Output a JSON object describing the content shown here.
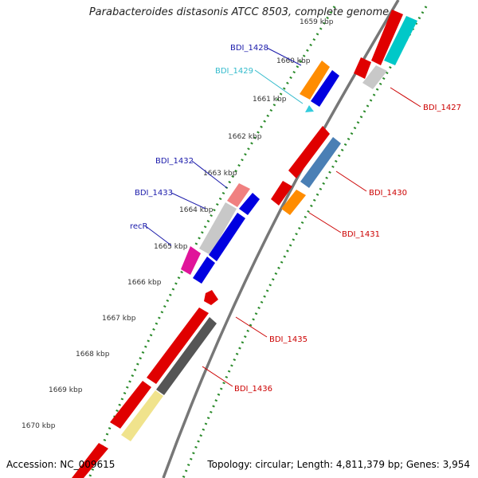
{
  "header": {
    "title": "Parabacteroides distasonis ATCC 8503, complete genome"
  },
  "footer": {
    "accession": "Accession: NC_009615",
    "summary": "Topology: circular; Length: 4,811,379 bp; Genes: 3,954"
  },
  "ticks": {
    "kbp_1659": "1659 kbp",
    "kbp_1660": "1660 kbp",
    "kbp_1661": "1661 kbp",
    "kbp_1662": "1662 kbp",
    "kbp_1663": "1663 kbp",
    "kbp_1664": "1664 kbp",
    "kbp_1665": "1665 kbp",
    "kbp_1666": "1666 kbp",
    "kbp_1667": "1667 kbp",
    "kbp_1668": "1668 kbp",
    "kbp_1669": "1669 kbp",
    "kbp_1670": "1670 kbp"
  },
  "genes": {
    "bdi_1427": "BDI_1427",
    "bdi_1428": "BDI_1428",
    "bdi_1429": "BDI_1429",
    "bdi_1430": "BDI_1430",
    "bdi_1431": "BDI_1431",
    "bdi_1432": "BDI_1432",
    "bdi_1433": "BDI_1433",
    "recR": "recR",
    "bdi_1435": "BDI_1435",
    "bdi_1436": "BDI_1436"
  },
  "colors": {
    "backbone": "#8a8a8a",
    "tick_dots": "#2a8a2a",
    "left_label": "#1a1aaa",
    "left_label_alt": "#33bbcc",
    "right_label": "#cc0000"
  }
}
